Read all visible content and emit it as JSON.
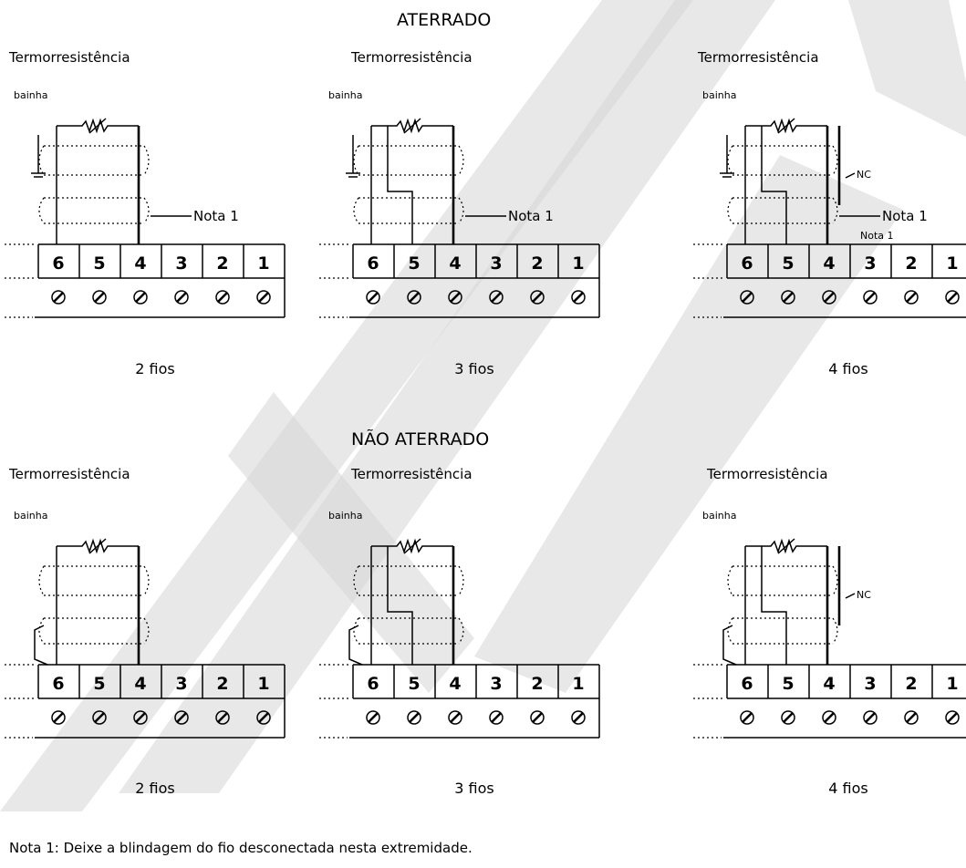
{
  "sections": {
    "grounded_title": "ATERRADO",
    "ungrounded_title": "NÃO ATERRADO"
  },
  "diagrams": [
    {
      "title": "Termorresistência",
      "sheath": "bainha",
      "note": "Nota 1",
      "caption": "2 fios"
    },
    {
      "title": "Termorresistência",
      "sheath": "bainha",
      "note": "Nota 1",
      "caption": "3 fios"
    },
    {
      "title": "Termorresistência",
      "sheath": "bainha",
      "note": "Nota 1",
      "nc": "NC",
      "caption": "4 fios"
    },
    {
      "title": "Termorresistência",
      "sheath": "bainha",
      "caption": "2 fios"
    },
    {
      "title": "Termorresistência",
      "sheath": "bainha",
      "caption": "3 fios"
    },
    {
      "title": "Termorresistência",
      "sheath": "bainha",
      "nc": "NC",
      "caption": "4 fios"
    }
  ],
  "terminal_labels": [
    "6",
    "5",
    "4",
    "3",
    "2",
    "1"
  ],
  "footnote": "Nota 1: Deixe a blindagem do fio desconectada nesta extremidade.",
  "watermark_color": "#d6d6d6"
}
